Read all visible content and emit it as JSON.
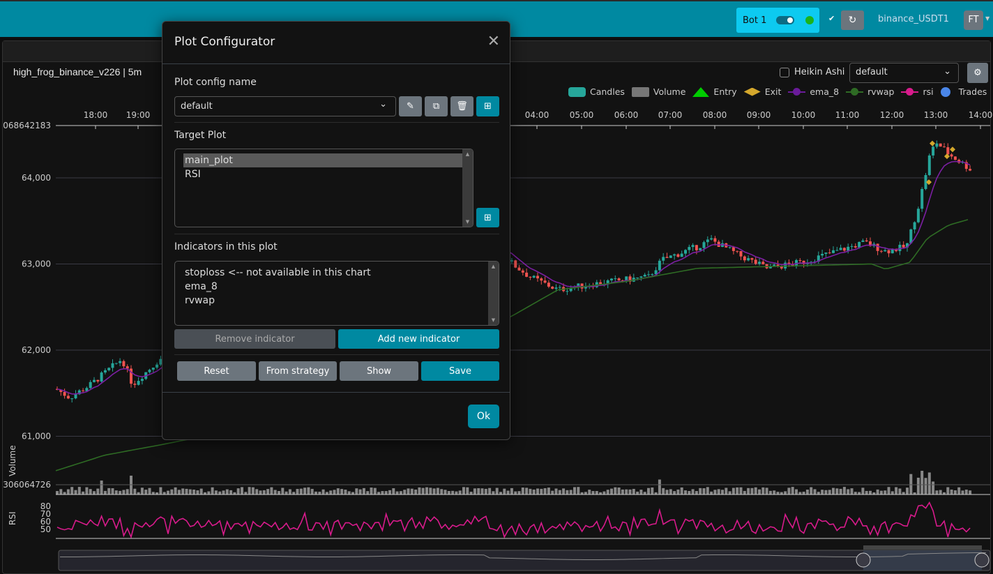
{
  "navbar": {
    "bot_label": "Bot 1",
    "exchange": "binance_USDT1",
    "user_initials": "FT",
    "bot_online_color": "#1bb31b"
  },
  "chart": {
    "pair_title": "high_frog_binance_v226 | 5m",
    "heikin_ashi_label": "Heikin Ashi",
    "heikin_ashi_checked": false,
    "plot_config_select": "default",
    "legend": [
      {
        "label": "Candles",
        "color": "#26a69a",
        "icon": "rounded-rect"
      },
      {
        "label": "Volume",
        "color": "#777777",
        "icon": "rect"
      },
      {
        "label": "Entry",
        "color": "#00cc00",
        "icon": "triangle-up"
      },
      {
        "label": "Exit",
        "color": "#d4a72c",
        "icon": "diamond"
      },
      {
        "label": "ema_8",
        "color": "#6a1b9a",
        "icon": "line-dot"
      },
      {
        "label": "rvwap",
        "color": "#2e6b24",
        "icon": "line-dot"
      },
      {
        "label": "rsi",
        "color": "#d81b8c",
        "icon": "line-dot"
      },
      {
        "label": "Trades",
        "color": "#4a86e8",
        "icon": "circle"
      }
    ],
    "time_ticks": [
      "18:00",
      "19:00",
      "04:00",
      "05:00",
      "06:00",
      "07:00",
      "08:00",
      "09:00",
      "10:00",
      "11:00",
      "12:00",
      "13:00",
      "14:00"
    ],
    "price_ticks": [
      "64,000",
      "63,000",
      "62,000",
      "61,000"
    ],
    "price_top_label": "068642183",
    "volume_axis_label": "Volume",
    "volume_tick": "306064726",
    "rsi_axis_label": "RSI",
    "rsi_ticks": [
      "80",
      "70",
      "60",
      "50"
    ]
  },
  "modal": {
    "title": "Plot Configurator",
    "config_name_label": "Plot config name",
    "config_name_value": "default",
    "target_plot_label": "Target Plot",
    "target_plots": [
      "main_plot",
      "RSI"
    ],
    "selected_target": "main_plot",
    "indicators_label": "Indicators in this plot",
    "indicators": [
      "stoploss <-- not available in this chart",
      "ema_8",
      "rvwap"
    ],
    "remove_indicator": "Remove indicator",
    "add_indicator": "Add new indicator",
    "reset": "Reset",
    "from_strategy": "From strategy",
    "show": "Show",
    "save": "Save",
    "ok": "Ok"
  }
}
